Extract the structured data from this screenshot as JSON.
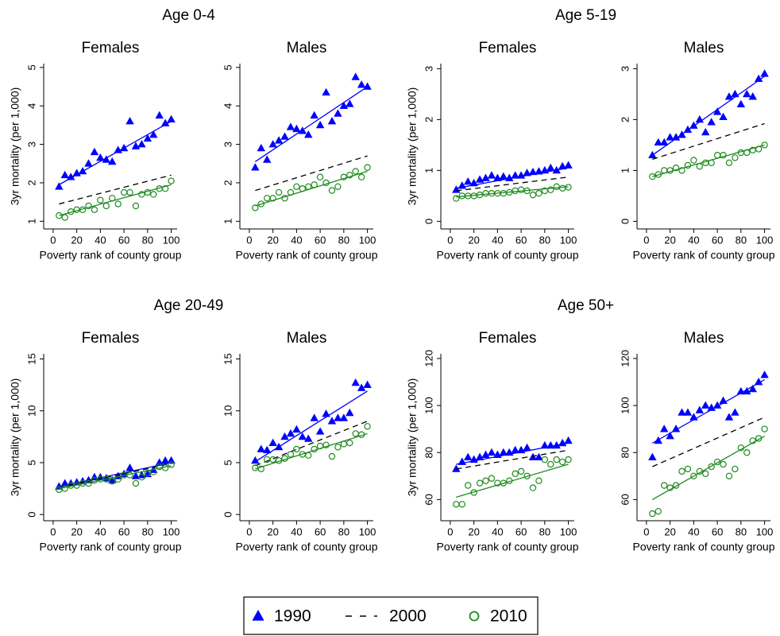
{
  "chart_data": [
    {
      "type": "scatter",
      "group_title": "Age 0-4",
      "title": "Females",
      "xlabel": "Poverty rank of county group",
      "ylabel": "3yr mortality (per 1,000)",
      "x": [
        5,
        10,
        15,
        20,
        25,
        30,
        35,
        40,
        45,
        50,
        55,
        60,
        65,
        70,
        75,
        80,
        85,
        90,
        95,
        100
      ],
      "xlim": [
        -8,
        105
      ],
      "xticks": [
        0,
        20,
        40,
        60,
        80,
        100
      ],
      "ylim": [
        0.8,
        5.1
      ],
      "yticks": [
        1,
        2,
        3,
        4,
        5
      ],
      "series": [
        {
          "name": "1990",
          "color": "#0000ff",
          "marker": "triangle",
          "values": [
            1.9,
            2.2,
            2.15,
            2.25,
            2.3,
            2.5,
            2.8,
            2.65,
            2.6,
            2.55,
            2.85,
            2.9,
            3.6,
            2.95,
            3.0,
            3.15,
            3.25,
            3.75,
            3.55,
            3.65
          ],
          "fit": [
            1.95,
            3.6
          ]
        },
        {
          "name": "2000",
          "color": "#000000",
          "dash": true,
          "fit": [
            1.45,
            2.2
          ]
        },
        {
          "name": "2010",
          "color": "#1e8a1e",
          "marker": "circle",
          "values": [
            1.15,
            1.1,
            1.25,
            1.3,
            1.3,
            1.4,
            1.3,
            1.55,
            1.4,
            1.6,
            1.45,
            1.75,
            1.75,
            1.4,
            1.7,
            1.75,
            1.7,
            1.85,
            1.85,
            2.05
          ],
          "fit": [
            1.15,
            1.95
          ]
        }
      ]
    },
    {
      "type": "scatter",
      "title": "Males",
      "xlabel": "Poverty rank of county group",
      "x": [
        5,
        10,
        15,
        20,
        25,
        30,
        35,
        40,
        45,
        50,
        55,
        60,
        65,
        70,
        75,
        80,
        85,
        90,
        95,
        100
      ],
      "xlim": [
        -8,
        105
      ],
      "xticks": [
        0,
        20,
        40,
        60,
        80,
        100
      ],
      "ylim": [
        0.8,
        5.1
      ],
      "yticks": [
        1,
        2,
        3,
        4,
        5
      ],
      "series": [
        {
          "name": "1990",
          "color": "#0000ff",
          "marker": "triangle",
          "values": [
            2.4,
            2.9,
            2.6,
            3.0,
            3.1,
            3.2,
            3.45,
            3.4,
            3.35,
            3.25,
            3.75,
            3.5,
            4.35,
            3.6,
            3.8,
            4.0,
            4.05,
            4.75,
            4.55,
            4.5
          ],
          "fit": [
            2.55,
            4.5
          ]
        },
        {
          "name": "2000",
          "color": "#000000",
          "dash": true,
          "fit": [
            1.8,
            2.7
          ]
        },
        {
          "name": "2010",
          "color": "#1e8a1e",
          "marker": "circle",
          "values": [
            1.35,
            1.45,
            1.6,
            1.6,
            1.75,
            1.6,
            1.75,
            1.9,
            1.85,
            1.9,
            1.95,
            2.15,
            2.0,
            1.8,
            1.9,
            2.15,
            2.2,
            2.3,
            2.15,
            2.4
          ],
          "fit": [
            1.4,
            2.3
          ]
        }
      ]
    },
    {
      "type": "scatter",
      "group_title": "Age 5-19",
      "title": "Females",
      "xlabel": "Poverty rank of county group",
      "ylabel": "3yr mortality (per 1,000)",
      "x": [
        5,
        10,
        15,
        20,
        25,
        30,
        35,
        40,
        45,
        50,
        55,
        60,
        65,
        70,
        75,
        80,
        85,
        90,
        95,
        100
      ],
      "xlim": [
        -8,
        105
      ],
      "xticks": [
        0,
        20,
        40,
        60,
        80,
        100
      ],
      "ylim": [
        -0.15,
        3.1
      ],
      "yticks": [
        0,
        1,
        2,
        3
      ],
      "series": [
        {
          "name": "1990",
          "color": "#0000ff",
          "marker": "triangle",
          "values": [
            0.62,
            0.7,
            0.78,
            0.75,
            0.82,
            0.85,
            0.9,
            0.85,
            0.88,
            0.85,
            0.9,
            0.9,
            0.95,
            0.97,
            0.98,
            1.0,
            1.05,
            1.0,
            1.08,
            1.1
          ],
          "fit": [
            0.65,
            1.05
          ]
        },
        {
          "name": "2000",
          "color": "#000000",
          "dash": true,
          "fit": [
            0.6,
            0.87
          ]
        },
        {
          "name": "2010",
          "color": "#1e8a1e",
          "marker": "circle",
          "values": [
            0.45,
            0.5,
            0.5,
            0.5,
            0.52,
            0.55,
            0.55,
            0.55,
            0.55,
            0.57,
            0.6,
            0.62,
            0.6,
            0.52,
            0.55,
            0.6,
            0.62,
            0.68,
            0.65,
            0.67
          ],
          "fit": [
            0.48,
            0.68
          ]
        }
      ]
    },
    {
      "type": "scatter",
      "title": "Males",
      "xlabel": "Poverty rank of county group",
      "x": [
        5,
        10,
        15,
        20,
        25,
        30,
        35,
        40,
        45,
        50,
        55,
        60,
        65,
        70,
        75,
        80,
        85,
        90,
        95,
        100
      ],
      "xlim": [
        -8,
        105
      ],
      "xticks": [
        0,
        20,
        40,
        60,
        80,
        100
      ],
      "ylim": [
        -0.15,
        3.1
      ],
      "yticks": [
        0,
        1,
        2,
        3
      ],
      "series": [
        {
          "name": "1990",
          "color": "#0000ff",
          "marker": "triangle",
          "values": [
            1.3,
            1.55,
            1.55,
            1.65,
            1.65,
            1.7,
            1.8,
            1.88,
            2.0,
            1.75,
            1.95,
            2.15,
            2.05,
            2.45,
            2.5,
            2.3,
            2.5,
            2.45,
            2.8,
            2.9
          ],
          "fit": [
            1.3,
            2.85
          ]
        },
        {
          "name": "2000",
          "color": "#000000",
          "dash": true,
          "fit": [
            1.22,
            1.92
          ]
        },
        {
          "name": "2010",
          "color": "#1e8a1e",
          "marker": "circle",
          "values": [
            0.88,
            0.92,
            1.0,
            1.0,
            1.05,
            1.0,
            1.1,
            1.2,
            1.08,
            1.15,
            1.15,
            1.3,
            1.3,
            1.15,
            1.25,
            1.35,
            1.35,
            1.4,
            1.42,
            1.5
          ],
          "fit": [
            0.88,
            1.5
          ]
        }
      ]
    },
    {
      "type": "scatter",
      "group_title": "Age 20-49",
      "title": "Females",
      "xlabel": "Poverty rank of county group",
      "ylabel": "3yr mortality (per 1,000)",
      "x": [
        5,
        10,
        15,
        20,
        25,
        30,
        35,
        40,
        45,
        50,
        55,
        60,
        65,
        70,
        75,
        80,
        85,
        90,
        95,
        100
      ],
      "xlim": [
        -8,
        105
      ],
      "xticks": [
        0,
        20,
        40,
        60,
        80,
        100
      ],
      "ylim": [
        -0.6,
        15.5
      ],
      "yticks": [
        0,
        5,
        10,
        15
      ],
      "series": [
        {
          "name": "1990",
          "color": "#0000ff",
          "marker": "triangle",
          "values": [
            2.7,
            3.0,
            3.0,
            3.1,
            3.2,
            3.3,
            3.6,
            3.6,
            3.5,
            3.3,
            3.7,
            3.9,
            4.5,
            3.7,
            3.8,
            3.9,
            4.3,
            5.0,
            5.2,
            5.2
          ],
          "fit": [
            2.7,
            5.0
          ]
        },
        {
          "name": "2000",
          "color": "#000000",
          "dash": true,
          "fit": [
            2.6,
            4.9
          ]
        },
        {
          "name": "2010",
          "color": "#1e8a1e",
          "marker": "circle",
          "values": [
            2.4,
            2.5,
            2.8,
            2.8,
            3.0,
            3.0,
            3.3,
            3.4,
            3.4,
            3.2,
            3.4,
            3.8,
            3.8,
            3.0,
            3.6,
            4.0,
            4.1,
            4.6,
            4.5,
            4.8
          ],
          "fit": [
            2.5,
            4.7
          ]
        }
      ]
    },
    {
      "type": "scatter",
      "title": "Males",
      "xlabel": "Poverty rank of county group",
      "x": [
        5,
        10,
        15,
        20,
        25,
        30,
        35,
        40,
        45,
        50,
        55,
        60,
        65,
        70,
        75,
        80,
        85,
        90,
        95,
        100
      ],
      "xlim": [
        -8,
        105
      ],
      "xticks": [
        0,
        20,
        40,
        60,
        80,
        100
      ],
      "ylim": [
        -0.6,
        15.5
      ],
      "yticks": [
        0,
        5,
        10,
        15
      ],
      "series": [
        {
          "name": "1990",
          "color": "#0000ff",
          "marker": "triangle",
          "values": [
            5.2,
            6.3,
            6.2,
            6.9,
            6.5,
            7.5,
            7.8,
            8.2,
            7.5,
            7.3,
            9.3,
            8.0,
            9.7,
            9.0,
            9.3,
            9.3,
            9.8,
            12.7,
            12.2,
            12.5
          ],
          "fit": [
            5.1,
            11.9
          ]
        },
        {
          "name": "2000",
          "color": "#000000",
          "dash": true,
          "fit": [
            4.7,
            9.0
          ]
        },
        {
          "name": "2010",
          "color": "#1e8a1e",
          "marker": "circle",
          "values": [
            4.5,
            4.4,
            5.3,
            5.3,
            5.2,
            5.4,
            5.8,
            6.3,
            5.8,
            5.7,
            6.3,
            6.6,
            6.7,
            5.6,
            6.5,
            6.8,
            6.9,
            7.8,
            7.7,
            8.5
          ],
          "fit": [
            4.4,
            7.8
          ]
        }
      ]
    },
    {
      "type": "scatter",
      "group_title": "Age 50+",
      "title": "Females",
      "xlabel": "Poverty rank of county group",
      "ylabel": "3yr mortality (per 1,000)",
      "x": [
        5,
        10,
        15,
        20,
        25,
        30,
        35,
        40,
        45,
        50,
        55,
        60,
        65,
        70,
        75,
        80,
        85,
        90,
        95,
        100
      ],
      "xlim": [
        -8,
        105
      ],
      "xticks": [
        0,
        20,
        40,
        60,
        80,
        100
      ],
      "ylim": [
        51,
        122
      ],
      "yticks": [
        60,
        80,
        100,
        120
      ],
      "series": [
        {
          "name": "1990",
          "color": "#0000ff",
          "marker": "triangle",
          "values": [
            73,
            76,
            78,
            77,
            78,
            79,
            80,
            79,
            80,
            80,
            81,
            81,
            82,
            78,
            78,
            83,
            83,
            83,
            84,
            85
          ],
          "fit": [
            75,
            84
          ]
        },
        {
          "name": "2000",
          "color": "#000000",
          "dash": true,
          "fit": [
            73,
            81
          ]
        },
        {
          "name": "2010",
          "color": "#1e8a1e",
          "marker": "circle",
          "values": [
            58,
            58,
            66,
            63,
            67,
            68,
            69,
            67,
            67,
            68,
            71,
            72,
            70,
            65,
            68,
            77,
            75,
            77,
            76,
            77
          ],
          "fit": [
            61,
            75
          ]
        }
      ]
    },
    {
      "type": "scatter",
      "title": "Males",
      "xlabel": "Poverty rank of county group",
      "x": [
        5,
        10,
        15,
        20,
        25,
        30,
        35,
        40,
        45,
        50,
        55,
        60,
        65,
        70,
        75,
        80,
        85,
        90,
        95,
        100
      ],
      "xlim": [
        -8,
        105
      ],
      "xticks": [
        0,
        20,
        40,
        60,
        80,
        100
      ],
      "ylim": [
        51,
        122
      ],
      "yticks": [
        60,
        80,
        100,
        120
      ],
      "series": [
        {
          "name": "1990",
          "color": "#0000ff",
          "marker": "triangle",
          "values": [
            78,
            85,
            90,
            87,
            90,
            97,
            97,
            95,
            98,
            100,
            99,
            100,
            102,
            95,
            97,
            106,
            106,
            107,
            110,
            113
          ],
          "fit": [
            84,
            111
          ]
        },
        {
          "name": "2000",
          "color": "#000000",
          "dash": true,
          "fit": [
            74,
            95
          ]
        },
        {
          "name": "2010",
          "color": "#1e8a1e",
          "marker": "circle",
          "values": [
            54,
            55,
            66,
            65,
            66,
            72,
            73,
            70,
            72,
            71,
            74,
            76,
            75,
            70,
            73,
            82,
            80,
            85,
            86,
            90
          ],
          "fit": [
            60,
            87
          ]
        }
      ]
    }
  ]
}
